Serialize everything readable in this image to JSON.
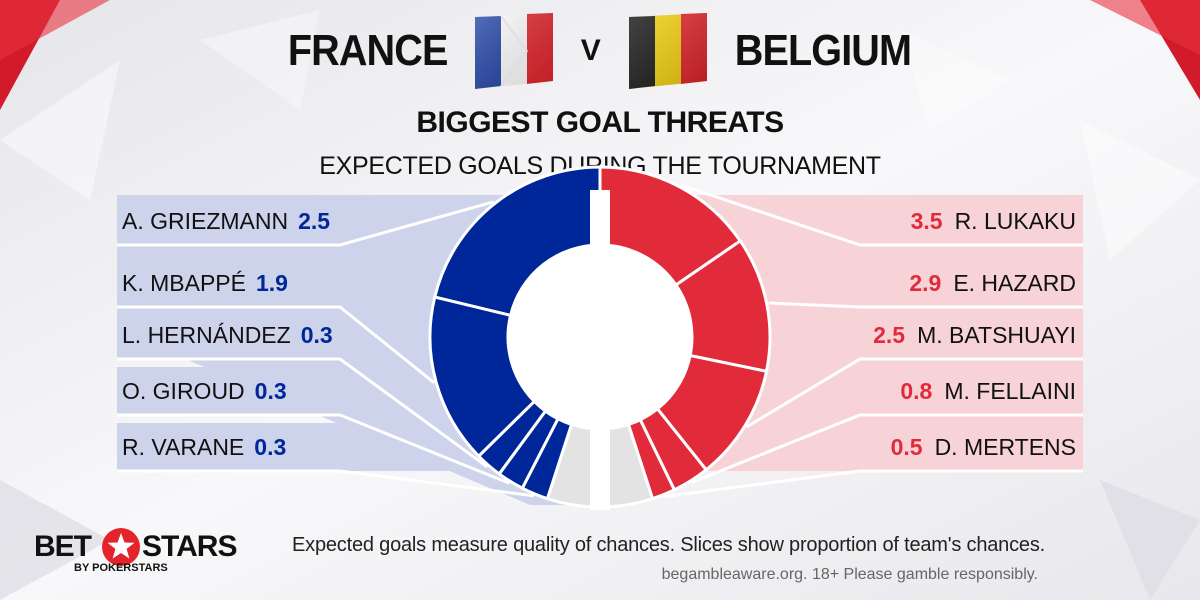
{
  "header": {
    "team_left": "FRANCE",
    "vs": "V",
    "team_right": "BELGIUM",
    "title": "BIGGEST GOAL THREATS",
    "subtitle": "EXPECTED GOALS DURING THE TOURNAMENT"
  },
  "colors": {
    "france": "#00279a",
    "belgium": "#e22b3a",
    "panel_left": "#ccd3ea",
    "panel_right": "#f7d3d8",
    "other": "#e3e3e3"
  },
  "chart_data": {
    "type": "pie",
    "title": "BIGGEST GOAL THREATS",
    "subtitle": "EXPECTED GOALS DURING THE TOURNAMENT",
    "series": [
      {
        "name": "FRANCE",
        "players": [
          "A. GRIEZMANN",
          "K. MBAPPÉ",
          "L. HERNÁNDEZ",
          "O. GIROUD",
          "R. VARANE"
        ],
        "values": [
          2.5,
          1.9,
          0.3,
          0.3,
          0.3
        ],
        "value_labels": [
          "2.5",
          "1.9",
          "0.3",
          "0.3",
          "0.3"
        ],
        "other_share": 0.1
      },
      {
        "name": "BELGIUM",
        "players": [
          "R. LUKAKU",
          "E. HAZARD",
          "M. BATSHUAYI",
          "M. FELLAINI",
          "D. MERTENS"
        ],
        "values": [
          3.5,
          2.9,
          2.5,
          0.8,
          0.5
        ],
        "value_labels": [
          "3.5",
          "2.9",
          "2.5",
          "0.8",
          "0.5"
        ],
        "other_share": 0.1
      }
    ]
  },
  "footer": {
    "note": "Expected goals measure quality of chances. Slices show proportion of team's chances.",
    "disclaimer": "begambleaware.org.  18+ Please gamble responsibly.",
    "logo_left": "BET",
    "logo_right": "STARS",
    "logo_sub": "BY POKERSTARS"
  }
}
